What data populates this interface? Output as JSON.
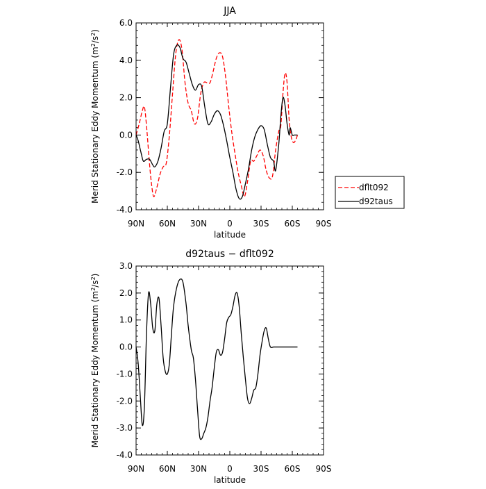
{
  "chart_data": [
    {
      "type": "line",
      "title": "JJA",
      "xlabel": "latitude",
      "ylabel_parts": [
        "Merid Stationary Eddy Momentum  (m",
        "2",
        "/s",
        "2",
        ")"
      ],
      "xlim": [
        90,
        -90
      ],
      "ylim": [
        -4.0,
        6.0
      ],
      "x_ticks": [
        {
          "value": 90,
          "label": "90N"
        },
        {
          "value": 60,
          "label": "60N"
        },
        {
          "value": 30,
          "label": "30N"
        },
        {
          "value": 0,
          "label": "0"
        },
        {
          "value": -30,
          "label": "30S"
        },
        {
          "value": -60,
          "label": "60S"
        },
        {
          "value": -90,
          "label": "90S"
        }
      ],
      "y_ticks": [
        {
          "value": -4.0,
          "label": "-4.0"
        },
        {
          "value": -2.0,
          "label": "-2.0"
        },
        {
          "value": 0.0,
          "label": "0.0"
        },
        {
          "value": 2.0,
          "label": "2.0"
        },
        {
          "value": 4.0,
          "label": "4.0"
        },
        {
          "value": 6.0,
          "label": "6.0"
        }
      ],
      "legend": "right-outside",
      "series": [
        {
          "name": "dflt092",
          "color": "#ff0000",
          "dash": "dashed",
          "points": [
            [
              90,
              0.0
            ],
            [
              87,
              0.6
            ],
            [
              84,
              1.3
            ],
            [
              82,
              1.5
            ],
            [
              80,
              0.5
            ],
            [
              77,
              -1.6
            ],
            [
              75,
              -2.7
            ],
            [
              73,
              -3.3
            ],
            [
              70,
              -2.8
            ],
            [
              67,
              -2.1
            ],
            [
              64,
              -1.7
            ],
            [
              61,
              -1.5
            ],
            [
              58,
              0.0
            ],
            [
              55,
              2.2
            ],
            [
              52,
              4.3
            ],
            [
              49,
              5.1
            ],
            [
              46,
              4.6
            ],
            [
              43,
              2.8
            ],
            [
              40,
              1.7
            ],
            [
              37,
              1.3
            ],
            [
              34,
              0.6
            ],
            [
              31,
              0.9
            ],
            [
              28,
              2.2
            ],
            [
              25,
              2.8
            ],
            [
              22,
              2.8
            ],
            [
              19,
              2.8
            ],
            [
              16,
              3.4
            ],
            [
              13,
              4.1
            ],
            [
              10,
              4.4
            ],
            [
              7,
              4.2
            ],
            [
              4,
              3.1
            ],
            [
              1,
              1.5
            ],
            [
              -2,
              0.1
            ],
            [
              -5,
              -1.0
            ],
            [
              -8,
              -2.0
            ],
            [
              -11,
              -2.7
            ],
            [
              -14,
              -3.3
            ],
            [
              -17,
              -2.5
            ],
            [
              -20,
              -1.4
            ],
            [
              -23,
              -1.4
            ],
            [
              -26,
              -1.1
            ],
            [
              -29,
              -0.8
            ],
            [
              -32,
              -1.1
            ],
            [
              -35,
              -1.9
            ],
            [
              -38,
              -2.3
            ],
            [
              -41,
              -2.2
            ],
            [
              -44,
              -0.8
            ],
            [
              -47,
              0.2
            ],
            [
              -49,
              0.5
            ],
            [
              -51,
              2.2
            ],
            [
              -53,
              3.3
            ],
            [
              -55,
              2.8
            ],
            [
              -57,
              0.8
            ],
            [
              -59,
              -0.1
            ],
            [
              -61,
              -0.4
            ],
            [
              -63,
              -0.3
            ],
            [
              -65,
              0.0
            ]
          ]
        },
        {
          "name": "d92taus",
          "color": "#000000",
          "dash": "solid",
          "points": [
            [
              90,
              0.0
            ],
            [
              88,
              -0.3
            ],
            [
              85,
              -1.0
            ],
            [
              83,
              -1.4
            ],
            [
              80,
              -1.3
            ],
            [
              77,
              -1.3
            ],
            [
              74,
              -1.6
            ],
            [
              72,
              -1.7
            ],
            [
              69,
              -1.4
            ],
            [
              66,
              -0.7
            ],
            [
              63,
              0.2
            ],
            [
              60,
              0.6
            ],
            [
              57,
              2.5
            ],
            [
              54,
              4.3
            ],
            [
              51,
              4.8
            ],
            [
              48,
              4.7
            ],
            [
              45,
              4.1
            ],
            [
              42,
              3.9
            ],
            [
              39,
              3.3
            ],
            [
              36,
              2.7
            ],
            [
              33,
              2.4
            ],
            [
              30,
              2.7
            ],
            [
              27,
              2.6
            ],
            [
              24,
              1.5
            ],
            [
              21,
              0.6
            ],
            [
              18,
              0.7
            ],
            [
              15,
              1.1
            ],
            [
              12,
              1.3
            ],
            [
              9,
              1.1
            ],
            [
              6,
              0.5
            ],
            [
              3,
              -0.3
            ],
            [
              0,
              -1.2
            ],
            [
              -3,
              -2.0
            ],
            [
              -6,
              -2.9
            ],
            [
              -9,
              -3.4
            ],
            [
              -12,
              -3.3
            ],
            [
              -15,
              -2.6
            ],
            [
              -18,
              -1.8
            ],
            [
              -21,
              -0.8
            ],
            [
              -24,
              -0.1
            ],
            [
              -27,
              0.3
            ],
            [
              -30,
              0.5
            ],
            [
              -33,
              0.3
            ],
            [
              -36,
              -0.5
            ],
            [
              -39,
              -1.2
            ],
            [
              -42,
              -1.4
            ],
            [
              -44,
              -1.9
            ],
            [
              -47,
              -0.5
            ],
            [
              -49,
              1.0
            ],
            [
              -51,
              2.0
            ],
            [
              -53,
              1.6
            ],
            [
              -55,
              0.6
            ],
            [
              -57,
              0.0
            ],
            [
              -58,
              0.4
            ],
            [
              -60,
              0.0
            ],
            [
              -62,
              0.0
            ],
            [
              -65,
              0.0
            ]
          ]
        }
      ]
    },
    {
      "type": "line",
      "title": "d92taus − dflt092",
      "xlabel": "latitude",
      "ylabel_parts": [
        "Merid Stationary Eddy Momentum  (m",
        "2",
        "/s",
        "2",
        ")"
      ],
      "xlim": [
        90,
        -90
      ],
      "ylim": [
        -4.0,
        3.0
      ],
      "x_ticks": [
        {
          "value": 90,
          "label": "90N"
        },
        {
          "value": 60,
          "label": "60N"
        },
        {
          "value": 30,
          "label": "30N"
        },
        {
          "value": 0,
          "label": "0"
        },
        {
          "value": -30,
          "label": "30S"
        },
        {
          "value": -60,
          "label": "60S"
        },
        {
          "value": -90,
          "label": "90S"
        }
      ],
      "y_ticks": [
        {
          "value": -4.0,
          "label": "-4.0"
        },
        {
          "value": -3.0,
          "label": "-3.0"
        },
        {
          "value": -2.0,
          "label": "-2.0"
        },
        {
          "value": -1.0,
          "label": "-1.0"
        },
        {
          "value": 0.0,
          "label": "0.0"
        },
        {
          "value": 1.0,
          "label": "1.0"
        },
        {
          "value": 2.0,
          "label": "2.0"
        },
        {
          "value": 3.0,
          "label": "3.0"
        }
      ],
      "series": [
        {
          "name": "",
          "color": "#000000",
          "dash": "solid",
          "points": [
            [
              90,
              0.0
            ],
            [
              88,
              -0.6
            ],
            [
              86,
              -1.8
            ],
            [
              84,
              -2.9
            ],
            [
              82,
              -2.2
            ],
            [
              80,
              0.5
            ],
            [
              78,
              2.0
            ],
            [
              76,
              1.6
            ],
            [
              74,
              0.7
            ],
            [
              72,
              0.6
            ],
            [
              70,
              1.6
            ],
            [
              68,
              1.8
            ],
            [
              66,
              0.8
            ],
            [
              64,
              -0.4
            ],
            [
              62,
              -0.9
            ],
            [
              60,
              -1.0
            ],
            [
              58,
              -0.6
            ],
            [
              56,
              0.5
            ],
            [
              54,
              1.5
            ],
            [
              51,
              2.2
            ],
            [
              48,
              2.5
            ],
            [
              45,
              2.4
            ],
            [
              42,
              1.6
            ],
            [
              40,
              0.8
            ],
            [
              37,
              -0.1
            ],
            [
              35,
              -0.4
            ],
            [
              33,
              -1.2
            ],
            [
              31,
              -2.3
            ],
            [
              29,
              -3.3
            ],
            [
              27,
              -3.4
            ],
            [
              25,
              -3.2
            ],
            [
              23,
              -3.0
            ],
            [
              21,
              -2.6
            ],
            [
              19,
              -2.0
            ],
            [
              17,
              -1.5
            ],
            [
              15,
              -0.8
            ],
            [
              13,
              -0.2
            ],
            [
              11,
              -0.1
            ],
            [
              9,
              -0.3
            ],
            [
              7,
              -0.2
            ],
            [
              5,
              0.3
            ],
            [
              3,
              0.9
            ],
            [
              1,
              1.1
            ],
            [
              -1,
              1.2
            ],
            [
              -3,
              1.5
            ],
            [
              -5,
              1.9
            ],
            [
              -7,
              2.0
            ],
            [
              -9,
              1.5
            ],
            [
              -11,
              0.5
            ],
            [
              -13,
              -0.4
            ],
            [
              -15,
              -1.2
            ],
            [
              -17,
              -1.9
            ],
            [
              -19,
              -2.1
            ],
            [
              -21,
              -1.9
            ],
            [
              -23,
              -1.6
            ],
            [
              -25,
              -1.5
            ],
            [
              -27,
              -1.0
            ],
            [
              -29,
              -0.3
            ],
            [
              -31,
              0.2
            ],
            [
              -33,
              0.6
            ],
            [
              -35,
              0.7
            ],
            [
              -37,
              0.3
            ],
            [
              -39,
              0.0
            ],
            [
              -42,
              0.0
            ],
            [
              -45,
              0.0
            ],
            [
              -48,
              0.0
            ],
            [
              -51,
              0.0
            ],
            [
              -54,
              0.0
            ],
            [
              -57,
              0.0
            ],
            [
              -60,
              0.0
            ],
            [
              -63,
              0.0
            ],
            [
              -65,
              0.0
            ]
          ]
        }
      ]
    }
  ]
}
